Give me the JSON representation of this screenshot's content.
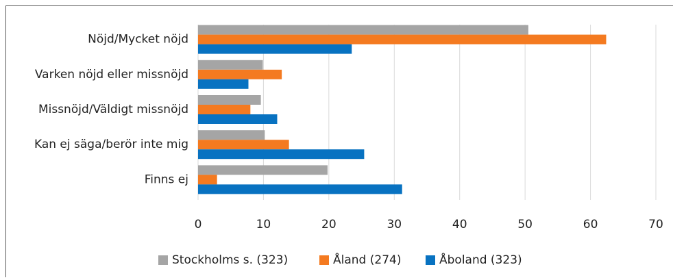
{
  "chart_data": {
    "type": "barh",
    "categories": [
      "Nöjd/Mycket nöjd",
      "Varken nöjd eller missnöjd",
      "Missnöjd/Väldigt missnöjd",
      "Kan ej säga/berör inte mig",
      "Finns ej"
    ],
    "series": [
      {
        "name": "Stockholms s. (323)",
        "color": "#a5a5a5",
        "values": [
          50.5,
          9.9,
          9.6,
          10.2,
          19.8
        ]
      },
      {
        "name": "Åland (274)",
        "color": "#f47a20",
        "values": [
          62.4,
          12.8,
          8.0,
          13.9,
          2.9
        ]
      },
      {
        "name": "Åboland (323)",
        "color": "#0872c1",
        "values": [
          23.5,
          7.7,
          12.1,
          25.4,
          31.2
        ]
      }
    ],
    "xlim": [
      0,
      70
    ],
    "xticks": [
      0,
      10,
      20,
      30,
      40,
      50,
      60,
      70
    ],
    "grid": true,
    "legend": "bottom"
  }
}
